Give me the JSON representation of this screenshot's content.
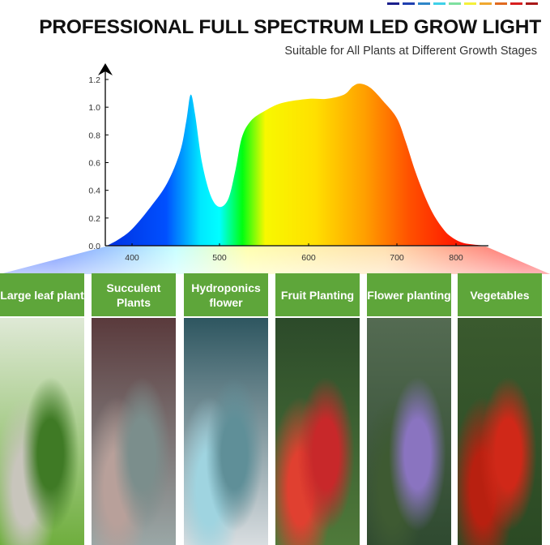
{
  "header": {
    "title": "PROFESSIONAL FULL SPECTRUM LED GROW LIGHT",
    "subtitle": "Suitable for All Plants at Different Growth Stages",
    "swatch_colors": [
      "#1a1f8c",
      "#1f3fb0",
      "#2f86c8",
      "#3fd0e8",
      "#7ee0a0",
      "#f5f03a",
      "#f0a830",
      "#e06a20",
      "#d82020",
      "#a81818"
    ]
  },
  "chart_data": {
    "type": "area",
    "title": "",
    "xlabel": "",
    "ylabel": "",
    "x_ticks": [
      400,
      500,
      600,
      700,
      800
    ],
    "y_ticks": [
      "0.0",
      "0.2",
      "0.4",
      "0.6",
      "0.8",
      "1.0",
      "1.2"
    ],
    "ylim": [
      0,
      1.2
    ],
    "grid": false,
    "fill": "spectrum gradient blue-cyan-green-yellow-orange-red",
    "x": [
      370,
      385,
      400,
      420,
      440,
      455,
      462,
      467,
      472,
      480,
      490,
      500,
      510,
      518,
      525,
      535,
      550,
      570,
      600,
      620,
      640,
      650,
      658,
      670,
      685,
      700,
      715,
      730,
      745,
      760,
      775,
      790,
      810,
      840
    ],
    "y": [
      0,
      0.05,
      0.12,
      0.27,
      0.45,
      0.68,
      0.9,
      1.09,
      0.95,
      0.6,
      0.36,
      0.28,
      0.34,
      0.55,
      0.78,
      0.9,
      0.97,
      1.03,
      1.06,
      1.06,
      1.09,
      1.15,
      1.17,
      1.14,
      1.04,
      0.92,
      0.75,
      0.55,
      0.38,
      0.24,
      0.14,
      0.07,
      0.02,
      0
    ]
  },
  "panels": [
    {
      "label": "Large leaf plant",
      "colors": [
        "#dfe9d6",
        "#6fae3e",
        "#3f7a25",
        "#c8c5bc"
      ]
    },
    {
      "label": "Succulent Plants",
      "colors": [
        "#5a3a3c",
        "#9aa7a6",
        "#7b8e8c",
        "#b8a09a"
      ]
    },
    {
      "label": "Hydroponics flower",
      "colors": [
        "#2e5660",
        "#d8dde0",
        "#5f8f98",
        "#9fd4e0"
      ]
    },
    {
      "label": "Fruit Planting",
      "colors": [
        "#2c4a2a",
        "#4f7a3a",
        "#c8282a",
        "#e04030"
      ]
    },
    {
      "label": "Flower planting",
      "colors": [
        "#546b52",
        "#2f4a30",
        "#8a74c0",
        "#3e5a32"
      ]
    },
    {
      "label": "Vegetables",
      "colors": [
        "#3a5a2e",
        "#2b4a24",
        "#d02818",
        "#b82010"
      ]
    }
  ]
}
